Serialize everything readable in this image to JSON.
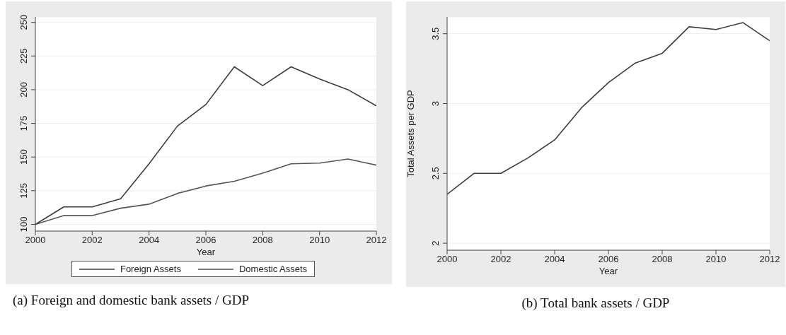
{
  "chart_data": [
    {
      "type": "line",
      "title": "(a) Foreign and domestic bank assets / GDP",
      "xlabel": "Year",
      "x": [
        2000,
        2001,
        2002,
        2003,
        2004,
        2005,
        2006,
        2007,
        2008,
        2009,
        2010,
        2011,
        2012
      ],
      "series": [
        {
          "name": "Foreign Assets",
          "color": "#3c3c3c",
          "values": [
            100,
            113,
            113,
            119,
            145,
            173,
            189,
            217,
            203,
            217,
            208,
            200,
            188
          ]
        },
        {
          "name": "Domestic Assets",
          "color": "#555555",
          "values": [
            100,
            106.5,
            106.5,
            112,
            115,
            123,
            128.5,
            132,
            138,
            145,
            145.5,
            148.5,
            144
          ]
        }
      ],
      "xlim": [
        2000,
        2012
      ],
      "xticks": [
        2000,
        2002,
        2004,
        2006,
        2008,
        2010,
        2012
      ],
      "ylim": [
        95,
        254
      ],
      "yticks": [
        100,
        125,
        150,
        175,
        200,
        225,
        250
      ],
      "grid": "y",
      "legend": "bottom",
      "marker": "none",
      "line_style": "solid"
    },
    {
      "type": "line",
      "title": "(b) Total bank assets / GDP",
      "xlabel": "Year",
      "ylabel": "Total Assets per GDP",
      "x": [
        2000,
        2001,
        2002,
        2003,
        2004,
        2005,
        2006,
        2007,
        2008,
        2009,
        2010,
        2011,
        2012
      ],
      "series": [
        {
          "color": "#3c3c3c",
          "values": [
            2.35,
            2.5,
            2.5,
            2.61,
            2.74,
            2.97,
            3.15,
            3.29,
            3.36,
            3.55,
            3.53,
            3.58,
            3.45
          ]
        }
      ],
      "xlim": [
        2000,
        2012
      ],
      "xticks": [
        2000,
        2002,
        2004,
        2006,
        2008,
        2010,
        2012
      ],
      "ylim": [
        1.95,
        3.62
      ],
      "yticks": [
        2,
        2.5,
        3,
        3.5
      ],
      "grid": "y",
      "legend": false,
      "marker": "none",
      "line_style": "solid"
    }
  ]
}
